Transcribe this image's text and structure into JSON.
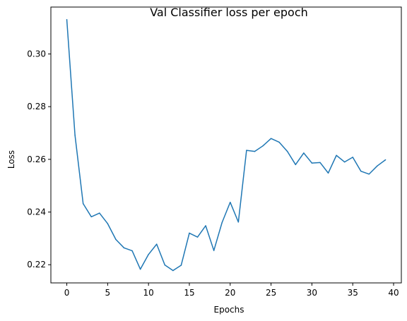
{
  "chart_data": {
    "type": "line",
    "title": "Val Classifier loss per epoch",
    "xlabel": "Epochs",
    "ylabel": "Loss",
    "xlim": [
      -1.95,
      40.95
    ],
    "ylim": [
      0.2131,
      0.3178
    ],
    "xticks": [
      0,
      5,
      10,
      15,
      20,
      25,
      30,
      35,
      40
    ],
    "xtick_labels": [
      "0",
      "5",
      "10",
      "15",
      "20",
      "25",
      "30",
      "35",
      "40"
    ],
    "yticks": [
      0.22,
      0.24,
      0.26,
      0.28,
      0.3
    ],
    "ytick_labels": [
      "0.22",
      "0.24",
      "0.26",
      "0.28",
      "0.30"
    ],
    "grid": false,
    "color": "#1f77b4",
    "series": [
      {
        "x": [
          0,
          1,
          2,
          3,
          4,
          5,
          6,
          7,
          8,
          9,
          10,
          11,
          12,
          13,
          14,
          15,
          16,
          17,
          18,
          19,
          20,
          21,
          22,
          23,
          24,
          25,
          26,
          27,
          28,
          29,
          30,
          31,
          32,
          33,
          34,
          35,
          36,
          37,
          38,
          39
        ],
        "values": [
          0.313,
          0.2692,
          0.2432,
          0.2382,
          0.2396,
          0.2356,
          0.2296,
          0.2264,
          0.2253,
          0.2183,
          0.2239,
          0.2278,
          0.2199,
          0.2178,
          0.2198,
          0.232,
          0.2305,
          0.2348,
          0.2254,
          0.236,
          0.2437,
          0.2362,
          0.2634,
          0.263,
          0.2651,
          0.2679,
          0.2665,
          0.263,
          0.258,
          0.2624,
          0.2586,
          0.2588,
          0.2548,
          0.2615,
          0.259,
          0.2608,
          0.2555,
          0.2544,
          0.2575,
          0.2598
        ]
      }
    ]
  }
}
